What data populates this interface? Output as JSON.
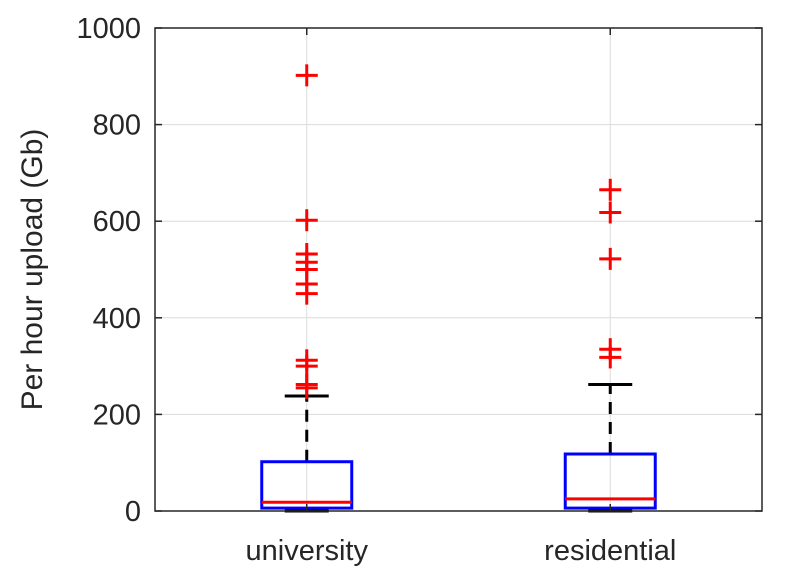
{
  "chart_data": {
    "type": "boxplot",
    "title": "",
    "xlabel": "",
    "ylabel": "Per hour upload (Gb)",
    "ylim": [
      0,
      1000
    ],
    "yticks": [
      0,
      200,
      400,
      600,
      800,
      1000
    ],
    "grid": true,
    "categories": [
      "university",
      "residential"
    ],
    "boxes": [
      {
        "category": "university",
        "whisker_low": 0,
        "q1": 6,
        "median": 18,
        "q3": 102,
        "whisker_high": 238,
        "outliers": [
          255,
          262,
          300,
          312,
          450,
          470,
          500,
          515,
          532,
          602,
          902
        ]
      },
      {
        "category": "residential",
        "whisker_low": 0,
        "q1": 6,
        "median": 25,
        "q3": 118,
        "whisker_high": 262,
        "outliers": [
          318,
          335,
          522,
          618,
          665
        ]
      }
    ],
    "colors": {
      "box": "#0000ff",
      "median": "#ff0000",
      "outlier": "#ff0000",
      "whisker": "#000000",
      "grid": "#dcdcdc",
      "axis": "#262626"
    }
  }
}
